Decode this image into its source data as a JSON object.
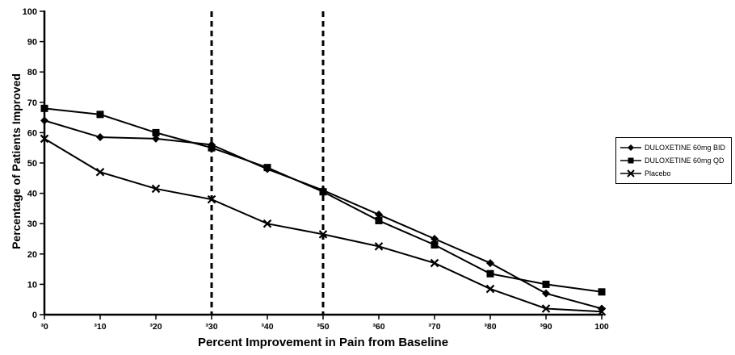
{
  "chart_data": {
    "type": "line",
    "title": "",
    "xlabel": "Percent Improvement in Pain from Baseline",
    "ylabel": "Percentage of Patients Improved",
    "xlim": [
      0,
      100
    ],
    "ylim": [
      0,
      100
    ],
    "grid": false,
    "legend_position": "right-outside",
    "line_color": "#000000",
    "background_color": "#ffffff",
    "reference_lines_x": [
      30,
      50
    ],
    "x": [
      0,
      10,
      20,
      30,
      40,
      50,
      60,
      70,
      80,
      90,
      100
    ],
    "xtick_values": [
      0,
      10,
      20,
      30,
      40,
      50,
      60,
      70,
      80,
      90,
      100
    ],
    "xtick_labels": [
      "³0",
      "³10",
      "³20",
      "³30",
      "³40",
      "³50",
      "³60",
      "³70",
      "³80",
      "³90",
      "100"
    ],
    "ytick_values": [
      0,
      10,
      20,
      30,
      40,
      50,
      60,
      70,
      80,
      90,
      100
    ],
    "ytick_labels": [
      "0",
      "10",
      "20",
      "30",
      "40",
      "50",
      "60",
      "70",
      "80",
      "90",
      "100"
    ],
    "series": [
      {
        "name": "DULOXETINE 60mg BID",
        "marker": "diamond",
        "values": [
          64,
          58.5,
          58,
          56,
          48,
          41,
          33,
          25,
          17,
          7,
          2
        ]
      },
      {
        "name": "DULOXETINE 60mg QD",
        "marker": "square",
        "values": [
          68,
          66,
          60,
          55,
          48.5,
          40.5,
          31,
          23,
          13.5,
          10,
          7.5
        ]
      },
      {
        "name": "Placebo",
        "marker": "x",
        "values": [
          58,
          47,
          41.5,
          38,
          30,
          26.5,
          22.5,
          17,
          8.5,
          2,
          1
        ]
      }
    ]
  }
}
